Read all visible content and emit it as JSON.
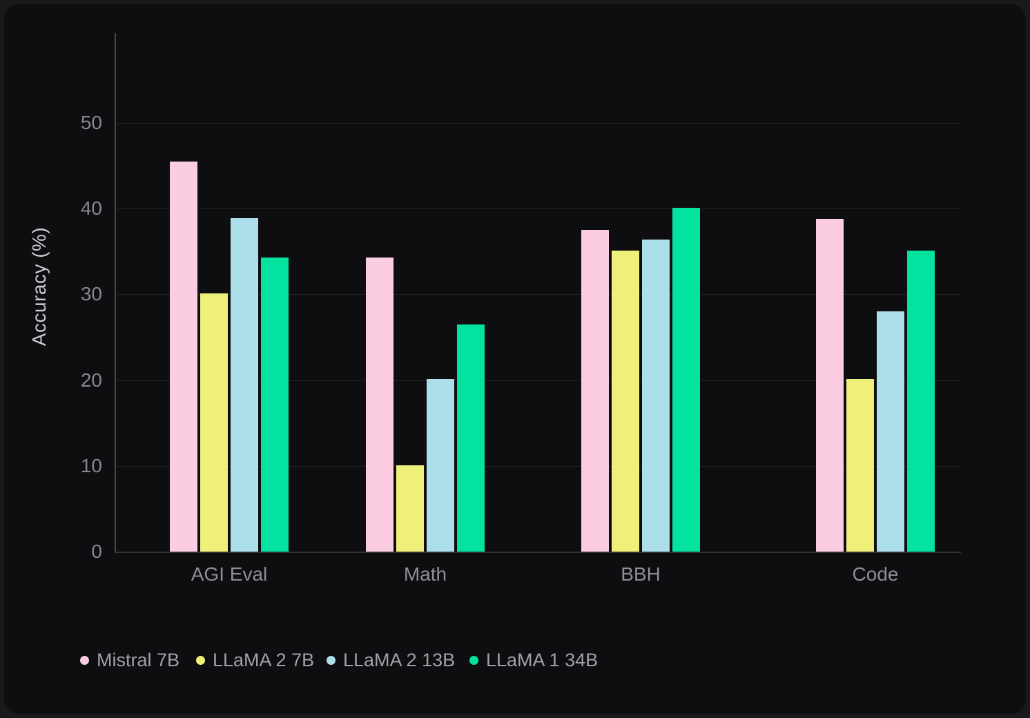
{
  "theme": {
    "page_background": "#19191b",
    "panel_background": "#0e0e10",
    "gridline_color": "#232327",
    "axis_line_color": "#47474c",
    "baseline_color": "#35353a",
    "tick_label_color": "#85888f",
    "category_label_color": "#8c8f96",
    "legend_label_color": "#9fa2aa",
    "axis_title_color": "#c9cbd1"
  },
  "chart_data": {
    "type": "bar",
    "title": "",
    "xlabel": "",
    "ylabel": "Accuracy (%)",
    "categories": [
      "AGI Eval",
      "Math",
      "BBH",
      "Code"
    ],
    "series": [
      {
        "name": "Mistral 7B",
        "color": "#fccde2",
        "values": [
          45.5,
          34.3,
          37.5,
          38.8
        ]
      },
      {
        "name": "LLaMA 2 7B",
        "color": "#eff079",
        "values": [
          30.1,
          10.1,
          35.1,
          20.1
        ]
      },
      {
        "name": "LLaMA 2 13B",
        "color": "#addfeb",
        "values": [
          38.9,
          20.1,
          36.4,
          28.0
        ]
      },
      {
        "name": "LLaMA 1 34B",
        "color": "#03e29e",
        "values": [
          34.3,
          26.5,
          40.1,
          35.1
        ]
      }
    ],
    "yticks": [
      0,
      10,
      20,
      30,
      40,
      50
    ],
    "ylim": [
      0,
      60.5
    ],
    "grid": true,
    "legend_position": "bottom-left"
  }
}
